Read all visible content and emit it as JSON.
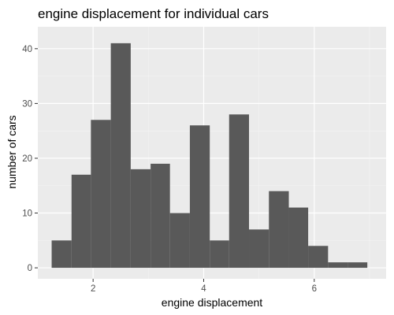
{
  "chart_data": {
    "type": "bar",
    "title": "engine displacement for individual cars",
    "xlabel": "engine displacement",
    "ylabel": "number of cars",
    "xlim": [
      1.0,
      7.3
    ],
    "ylim": [
      -2.0,
      44.0
    ],
    "x_ticks": [
      2,
      4,
      6
    ],
    "y_ticks": [
      0,
      10,
      20,
      30,
      40
    ],
    "bin_width": 0.357,
    "bins": [
      {
        "x0": 1.25,
        "x1": 1.61,
        "count": 5
      },
      {
        "x0": 1.61,
        "x1": 1.96,
        "count": 17
      },
      {
        "x0": 1.96,
        "x1": 2.32,
        "count": 27
      },
      {
        "x0": 2.32,
        "x1": 2.68,
        "count": 41
      },
      {
        "x0": 2.68,
        "x1": 3.04,
        "count": 18
      },
      {
        "x0": 3.04,
        "x1": 3.39,
        "count": 19
      },
      {
        "x0": 3.39,
        "x1": 3.75,
        "count": 10
      },
      {
        "x0": 3.75,
        "x1": 4.11,
        "count": 26
      },
      {
        "x0": 4.11,
        "x1": 4.46,
        "count": 5
      },
      {
        "x0": 4.46,
        "x1": 4.82,
        "count": 28
      },
      {
        "x0": 4.82,
        "x1": 5.18,
        "count": 7
      },
      {
        "x0": 5.18,
        "x1": 5.54,
        "count": 14
      },
      {
        "x0": 5.54,
        "x1": 5.89,
        "count": 11
      },
      {
        "x0": 5.89,
        "x1": 6.25,
        "count": 4
      },
      {
        "x0": 6.25,
        "x1": 6.61,
        "count": 1
      },
      {
        "x0": 6.61,
        "x1": 6.96,
        "count": 1
      }
    ],
    "grid": true,
    "colors": {
      "bar": "#595959",
      "panel_bg": "#ebebeb",
      "grid_major": "#ffffff",
      "grid_minor": "#f4f4f4"
    }
  }
}
